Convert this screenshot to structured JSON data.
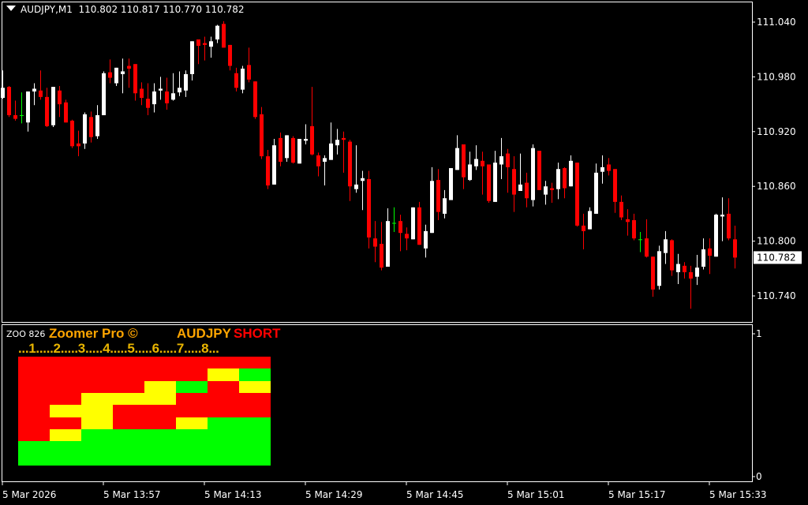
{
  "header": {
    "symbol": "AUDJPY,M1",
    "ohlc": "110.802 110.817 110.770 110.782"
  },
  "indicator": {
    "id_label": "ZOO 826",
    "name": "Zoomer Pro ©",
    "symbol": "AUDJPY",
    "signal": "SHORT",
    "columns_label": "...1.....2.....3.....4.....5.....6.....7.....8...",
    "axis_top": "1",
    "axis_bottom": "0",
    "colors": {
      "R": "#FF0000",
      "Y": "#FFFF00",
      "G": "#00FF00"
    },
    "grid": [
      [
        "R",
        "R",
        "R",
        "R",
        "R",
        "R",
        "R",
        "R"
      ],
      [
        "R",
        "R",
        "R",
        "R",
        "R",
        "R",
        "Y",
        "G"
      ],
      [
        "R",
        "R",
        "R",
        "R",
        "Y",
        "G",
        "R",
        "Y"
      ],
      [
        "R",
        "R",
        "Y",
        "Y",
        "Y",
        "R",
        "R",
        "R"
      ],
      [
        "R",
        "Y",
        "Y",
        "R",
        "R",
        "R",
        "R",
        "R"
      ],
      [
        "R",
        "R",
        "Y",
        "R",
        "R",
        "Y",
        "G",
        "G"
      ],
      [
        "R",
        "Y",
        "G",
        "G",
        "G",
        "G",
        "G",
        "G"
      ],
      [
        "G",
        "G",
        "G",
        "G",
        "G",
        "G",
        "G",
        "G"
      ],
      [
        "G",
        "G",
        "G",
        "G",
        "G",
        "G",
        "G",
        "G"
      ]
    ]
  },
  "chart_data": {
    "type": "candlestick",
    "symbol": "AUDJPY",
    "timeframe": "M1",
    "ylim": [
      110.716,
      111.065
    ],
    "y_ticks": [
      "111.040",
      "110.980",
      "110.920",
      "110.860",
      "110.800",
      "110.740"
    ],
    "current_price": "110.782",
    "x_ticks": [
      "5 Mar 2026",
      "5 Mar 13:57",
      "5 Mar 14:13",
      "5 Mar 14:29",
      "5 Mar 14:45",
      "5 Mar 15:01",
      "5 Mar 15:17",
      "5 Mar 15:33"
    ],
    "colors": {
      "up": "#FFFFFF",
      "down": "#FF0000",
      "doji": "#00FF00",
      "background": "#000000"
    },
    "ohlc": [
      [
        110.957,
        110.987,
        110.956,
        110.968
      ],
      [
        110.969,
        110.97,
        110.936,
        110.938
      ],
      [
        110.938,
        110.954,
        110.932,
        110.934
      ],
      [
        110.938,
        110.963,
        110.929,
        110.938
      ],
      [
        110.93,
        110.964,
        110.92,
        110.964
      ],
      [
        110.964,
        110.973,
        110.949,
        110.967
      ],
      [
        110.965,
        110.987,
        110.955,
        110.958
      ],
      [
        110.958,
        110.968,
        110.925,
        110.926
      ],
      [
        110.927,
        110.969,
        110.925,
        110.969
      ],
      [
        110.965,
        110.97,
        110.936,
        110.95
      ],
      [
        110.952,
        110.955,
        110.93,
        110.93
      ],
      [
        110.932,
        110.933,
        110.902,
        110.904
      ],
      [
        110.907,
        110.921,
        110.893,
        110.904
      ],
      [
        110.907,
        110.941,
        110.901,
        110.939
      ],
      [
        110.936,
        110.942,
        110.908,
        110.914
      ],
      [
        110.915,
        110.949,
        110.912,
        110.938
      ],
      [
        110.938,
        110.986,
        110.938,
        110.984
      ],
      [
        110.985,
        110.999,
        110.973,
        110.979
      ],
      [
        110.973,
        110.99,
        110.97,
        110.99
      ],
      [
        110.983,
        111.0,
        110.962,
        110.986
      ],
      [
        110.992,
        111.0,
        110.968,
        110.989
      ],
      [
        110.994,
        110.994,
        110.954,
        110.962
      ],
      [
        110.967,
        110.974,
        110.949,
        110.957
      ],
      [
        110.956,
        110.973,
        110.938,
        110.946
      ],
      [
        110.95,
        110.973,
        110.941,
        110.964
      ],
      [
        110.965,
        110.98,
        110.955,
        110.967
      ],
      [
        110.964,
        110.979,
        110.944,
        110.951
      ],
      [
        110.955,
        110.984,
        110.954,
        110.962
      ],
      [
        110.963,
        110.986,
        110.959,
        110.968
      ],
      [
        110.965,
        110.987,
        110.958,
        110.983
      ],
      [
        110.983,
        111.019,
        110.976,
        111.019
      ],
      [
        111.021,
        111.021,
        110.994,
        111.014
      ],
      [
        111.017,
        111.024,
        110.998,
        111.015
      ],
      [
        111.013,
        111.024,
        111.001,
        111.019
      ],
      [
        111.021,
        111.037,
        111.017,
        111.036
      ],
      [
        111.038,
        111.041,
        111.012,
        111.012
      ],
      [
        111.015,
        111.015,
        110.987,
        110.992
      ],
      [
        110.984,
        110.99,
        110.964,
        110.968
      ],
      [
        110.966,
        110.992,
        110.962,
        110.989
      ],
      [
        110.993,
        111.012,
        110.974,
        110.977
      ],
      [
        110.975,
        110.975,
        110.934,
        110.936
      ],
      [
        110.939,
        110.947,
        110.89,
        110.893
      ],
      [
        110.893,
        110.9,
        110.857,
        110.861
      ],
      [
        110.862,
        110.912,
        110.862,
        110.905
      ],
      [
        110.913,
        110.919,
        110.882,
        110.887
      ],
      [
        110.891,
        110.916,
        110.887,
        110.916
      ],
      [
        110.913,
        110.915,
        110.885,
        110.886
      ],
      [
        110.885,
        110.912,
        110.885,
        110.912
      ],
      [
        110.91,
        110.928,
        110.906,
        110.912
      ],
      [
        110.926,
        110.969,
        110.894,
        110.895
      ],
      [
        110.894,
        110.897,
        110.871,
        110.882
      ],
      [
        110.887,
        110.894,
        110.861,
        110.891
      ],
      [
        110.889,
        110.93,
        110.889,
        110.907
      ],
      [
        110.905,
        110.923,
        110.895,
        110.911
      ],
      [
        110.913,
        110.92,
        110.875,
        110.911
      ],
      [
        110.909,
        110.911,
        110.844,
        110.86
      ],
      [
        110.857,
        110.905,
        110.853,
        110.862
      ],
      [
        110.866,
        110.877,
        110.834,
        110.869
      ],
      [
        110.868,
        110.877,
        110.792,
        110.804
      ],
      [
        110.803,
        110.822,
        110.777,
        110.794
      ],
      [
        110.797,
        110.821,
        110.768,
        110.771
      ],
      [
        110.772,
        110.836,
        110.772,
        110.822
      ],
      [
        110.82,
        110.837,
        110.81,
        110.82
      ],
      [
        110.822,
        110.829,
        110.789,
        110.809
      ],
      [
        110.808,
        110.815,
        110.79,
        110.803
      ],
      [
        110.802,
        110.837,
        110.802,
        110.837
      ],
      [
        110.837,
        110.843,
        110.796,
        110.796
      ],
      [
        110.792,
        110.818,
        110.782,
        110.811
      ],
      [
        110.809,
        110.881,
        110.809,
        110.866
      ],
      [
        110.867,
        110.879,
        110.823,
        110.832
      ],
      [
        110.83,
        110.856,
        110.825,
        110.847
      ],
      [
        110.845,
        110.88,
        110.845,
        110.88
      ],
      [
        110.878,
        110.916,
        110.878,
        110.902
      ],
      [
        110.906,
        110.906,
        110.857,
        110.87
      ],
      [
        110.867,
        110.898,
        110.866,
        110.884
      ],
      [
        110.882,
        110.905,
        110.878,
        110.89
      ],
      [
        110.888,
        110.898,
        110.851,
        110.882
      ],
      [
        110.884,
        110.884,
        110.842,
        110.844
      ],
      [
        110.843,
        110.899,
        110.843,
        110.886
      ],
      [
        110.884,
        110.913,
        110.868,
        110.893
      ],
      [
        110.896,
        110.901,
        110.853,
        110.881
      ],
      [
        110.879,
        110.893,
        110.832,
        110.851
      ],
      [
        110.855,
        110.896,
        110.855,
        110.862
      ],
      [
        110.864,
        110.875,
        110.837,
        110.847
      ],
      [
        110.845,
        110.906,
        110.838,
        110.902
      ],
      [
        110.899,
        110.899,
        110.856,
        110.856
      ],
      [
        110.851,
        110.866,
        110.84,
        110.86
      ],
      [
        110.858,
        110.864,
        110.842,
        110.856
      ],
      [
        110.857,
        110.886,
        110.846,
        110.879
      ],
      [
        110.88,
        110.881,
        110.847,
        110.858
      ],
      [
        110.86,
        110.894,
        110.86,
        110.888
      ],
      [
        110.886,
        110.886,
        110.816,
        110.817
      ],
      [
        110.817,
        110.83,
        110.791,
        110.811
      ],
      [
        110.813,
        110.837,
        110.813,
        110.833
      ],
      [
        110.83,
        110.885,
        110.83,
        110.875
      ],
      [
        110.876,
        110.894,
        110.863,
        110.881
      ],
      [
        110.884,
        110.891,
        110.872,
        110.877
      ],
      [
        110.879,
        110.879,
        110.831,
        110.843
      ],
      [
        110.843,
        110.85,
        110.823,
        110.826
      ],
      [
        110.824,
        110.835,
        110.806,
        110.821
      ],
      [
        110.823,
        110.83,
        110.801,
        110.803
      ],
      [
        110.802,
        110.81,
        110.788,
        110.802
      ],
      [
        110.803,
        110.824,
        110.782,
        110.783
      ],
      [
        110.783,
        110.783,
        110.739,
        110.747
      ],
      [
        110.751,
        110.795,
        110.747,
        110.789
      ],
      [
        110.787,
        110.811,
        110.775,
        110.802
      ],
      [
        110.801,
        110.802,
        110.762,
        110.768
      ],
      [
        110.766,
        110.786,
        110.753,
        110.775
      ],
      [
        110.773,
        110.777,
        110.759,
        110.766
      ],
      [
        110.766,
        110.773,
        110.726,
        110.759
      ],
      [
        110.761,
        110.785,
        110.752,
        110.771
      ],
      [
        110.772,
        110.803,
        110.769,
        110.791
      ],
      [
        110.792,
        110.803,
        110.764,
        110.784
      ],
      [
        110.783,
        110.83,
        110.783,
        110.829
      ],
      [
        110.827,
        110.848,
        110.8,
        110.829
      ],
      [
        110.83,
        110.847,
        110.801,
        110.803
      ],
      [
        110.802,
        110.817,
        110.77,
        110.782
      ]
    ]
  }
}
